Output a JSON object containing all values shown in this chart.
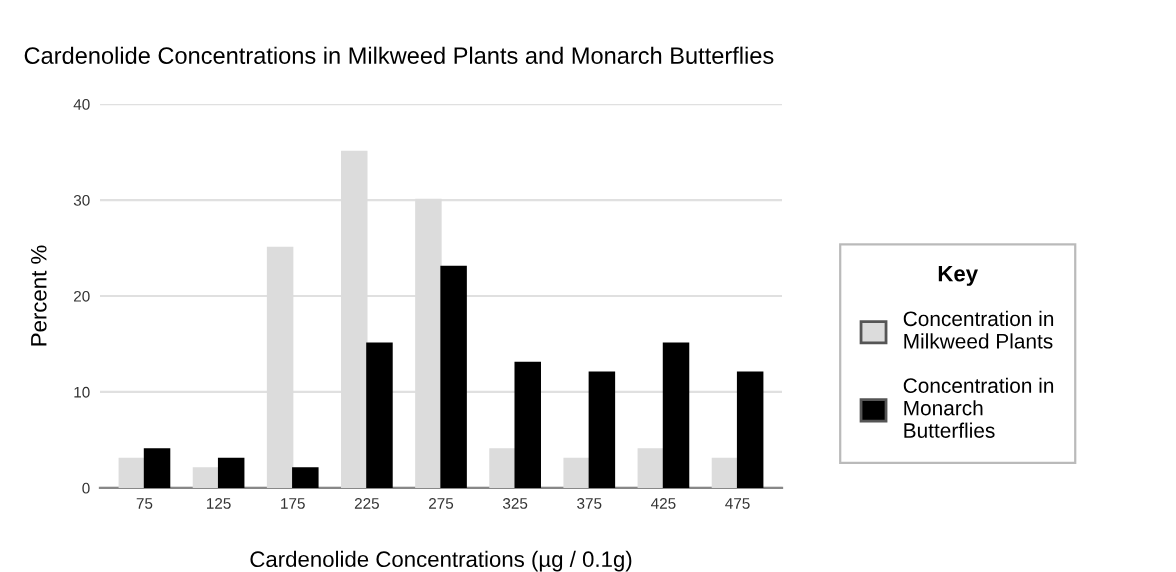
{
  "chart_data": {
    "type": "bar",
    "title": "Cardenolide Concentrations in Milkweed Plants and Monarch Butterflies",
    "xlabel": "Cardenolide Concentrations (µg / 0.1g)",
    "ylabel": "Percent %",
    "legend_title": "Key",
    "legend": "right",
    "grid": "y",
    "categories": [
      "75",
      "125",
      "175",
      "225",
      "275",
      "325",
      "375",
      "425",
      "475"
    ],
    "series": [
      {
        "name": "Concentration in Milkweed Plants",
        "color": "#dcdcdc",
        "values": [
          3,
          2,
          25,
          35,
          30,
          4,
          3,
          4,
          3
        ]
      },
      {
        "name": "Concentration in Monarch Butterflies",
        "color": "#000000",
        "values": [
          4,
          3,
          2,
          15,
          23,
          13,
          12,
          15,
          12
        ]
      }
    ],
    "ylim": [
      0,
      40
    ],
    "yticks": [
      0,
      10,
      20,
      30,
      40
    ]
  }
}
